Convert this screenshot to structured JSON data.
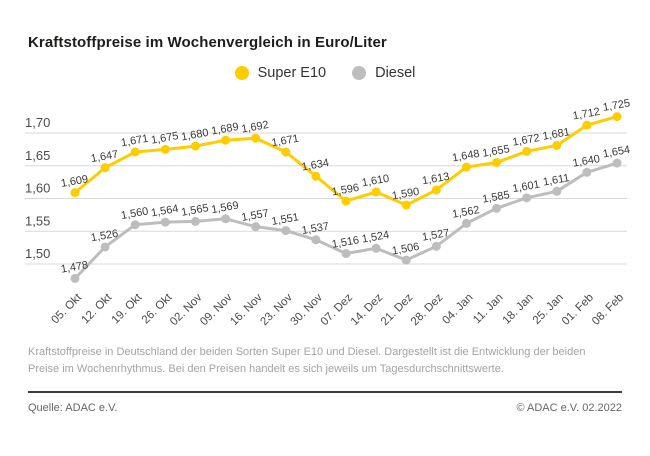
{
  "title": "Kraftstoffpreise im Wochenvergleich in Euro/Liter",
  "legend": {
    "items": [
      {
        "label": "Super E10",
        "color": "#FFCC00"
      },
      {
        "label": "Diesel",
        "color": "#BDBDBD"
      }
    ]
  },
  "chart_data": {
    "type": "line",
    "title": "Kraftstoffpreise im Wochenvergleich in Euro/Liter",
    "xlabel": "",
    "ylabel": "Euro/Liter",
    "categories": [
      "05. Okt",
      "12. Okt",
      "19. Okt",
      "26. Okt",
      "02. Nov",
      "09. Nov",
      "16. Nov",
      "23. Nov",
      "30. Nov",
      "07. Dez",
      "14. Dez",
      "21. Dez",
      "28. Dez",
      "04. Jan",
      "11. Jan",
      "18. Jan",
      "25. Jan",
      "01. Feb",
      "08. Feb"
    ],
    "series": [
      {
        "name": "Super E10",
        "color": "#FFCC00",
        "values": [
          1.609,
          1.647,
          1.671,
          1.675,
          1.68,
          1.689,
          1.692,
          1.671,
          1.634,
          1.596,
          1.61,
          1.59,
          1.613,
          1.648,
          1.655,
          1.672,
          1.681,
          1.712,
          1.725
        ]
      },
      {
        "name": "Diesel",
        "color": "#BDBDBD",
        "values": [
          1.478,
          1.526,
          1.56,
          1.564,
          1.565,
          1.569,
          1.557,
          1.551,
          1.537,
          1.516,
          1.524,
          1.506,
          1.527,
          1.562,
          1.585,
          1.601,
          1.611,
          1.64,
          1.654
        ]
      }
    ],
    "yticks": [
      1.5,
      1.55,
      1.6,
      1.65,
      1.7
    ],
    "ylim": [
      1.45,
      1.75
    ],
    "grid": true,
    "legend_position": "top",
    "grid_color": "#d8d8d8",
    "tick_color": "#4a4a4a",
    "data_label_color": "#3c3c3c",
    "decimal_separator": ","
  },
  "footnote": "Kraftstoffpreise in Deutschland der beiden Sorten Super E10 und Diesel. Dargestellt ist die Entwicklung der beiden Preise im Wochenrhythmus. Bei den Preisen handelt es sich jeweils um Tagesdurchschnittswerte.",
  "footer": {
    "source": "Quelle: ADAC e.V.",
    "copyright": "© ADAC e.V. 02.2022"
  }
}
